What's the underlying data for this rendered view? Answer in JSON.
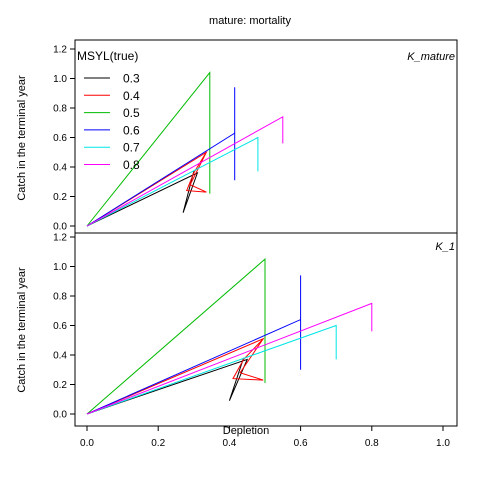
{
  "chart_data": {
    "type": "line",
    "title": "mature: mortality",
    "xlabel": "Depletion",
    "ylabel": "Catch in the terminal year",
    "xlim": [
      0,
      1
    ],
    "ylim": [
      0,
      1.2
    ],
    "x_ticks": [
      "0.0",
      "0.2",
      "0.4",
      "0.6",
      "0.8",
      "1.0"
    ],
    "y_ticks": [
      "0.0",
      "0.2",
      "0.4",
      "0.6",
      "0.8",
      "1.0",
      "1.2"
    ],
    "legend": {
      "title": "MSYL(true)",
      "placement": "top-left"
    },
    "series": [
      {
        "name": "0.3",
        "color": "#000000"
      },
      {
        "name": "0.4",
        "color": "#ff0000"
      },
      {
        "name": "0.5",
        "color": "#00bb00"
      },
      {
        "name": "0.6",
        "color": "#0000ff"
      },
      {
        "name": "0.7",
        "color": "#00e5e5"
      },
      {
        "name": "0.8",
        "color": "#ff00ff"
      }
    ],
    "panels": [
      {
        "label": "K_mature",
        "lines": [
          {
            "series": 0,
            "points": [
              [
                0,
                0
              ],
              [
                0.31,
                0.36
              ],
              [
                0.27,
                0.09
              ],
              [
                0.3,
                0.37
              ]
            ]
          },
          {
            "series": 1,
            "points": [
              [
                0,
                0
              ],
              [
                0.335,
                0.5
              ],
              [
                0.29,
                0.28
              ],
              [
                0.335,
                0.23
              ],
              [
                0.28,
                0.24
              ],
              [
                0.3,
                0.36
              ],
              [
                0.335,
                0.5
              ]
            ]
          },
          {
            "series": 2,
            "points": [
              [
                0,
                0
              ],
              [
                0.345,
                1.04
              ],
              [
                0.345,
                0.22
              ]
            ]
          },
          {
            "series": 3,
            "points": [
              [
                0,
                0
              ],
              [
                0.415,
                0.63
              ],
              [
                0.415,
                0.31
              ],
              [
                0.415,
                0.94
              ]
            ]
          },
          {
            "series": 4,
            "points": [
              [
                0,
                0
              ],
              [
                0.48,
                0.6
              ],
              [
                0.48,
                0.37
              ]
            ]
          },
          {
            "series": 5,
            "points": [
              [
                0,
                0
              ],
              [
                0.55,
                0.74
              ],
              [
                0.55,
                0.56
              ]
            ]
          }
        ]
      },
      {
        "label": "K_1",
        "lines": [
          {
            "series": 0,
            "points": [
              [
                0,
                0
              ],
              [
                0.45,
                0.37
              ],
              [
                0.4,
                0.09
              ],
              [
                0.44,
                0.38
              ]
            ]
          },
          {
            "series": 1,
            "points": [
              [
                0,
                0
              ],
              [
                0.495,
                0.51
              ],
              [
                0.43,
                0.28
              ],
              [
                0.495,
                0.23
              ],
              [
                0.41,
                0.24
              ],
              [
                0.44,
                0.37
              ],
              [
                0.495,
                0.51
              ]
            ]
          },
          {
            "series": 2,
            "points": [
              [
                0,
                0
              ],
              [
                0.5,
                1.05
              ],
              [
                0.5,
                0.21
              ]
            ]
          },
          {
            "series": 3,
            "points": [
              [
                0,
                0
              ],
              [
                0.6,
                0.64
              ],
              [
                0.6,
                0.3
              ],
              [
                0.6,
                0.94
              ]
            ]
          },
          {
            "series": 4,
            "points": [
              [
                0,
                0
              ],
              [
                0.7,
                0.6
              ],
              [
                0.7,
                0.37
              ]
            ]
          },
          {
            "series": 5,
            "points": [
              [
                0,
                0
              ],
              [
                0.8,
                0.75
              ],
              [
                0.8,
                0.56
              ]
            ]
          }
        ]
      }
    ]
  }
}
